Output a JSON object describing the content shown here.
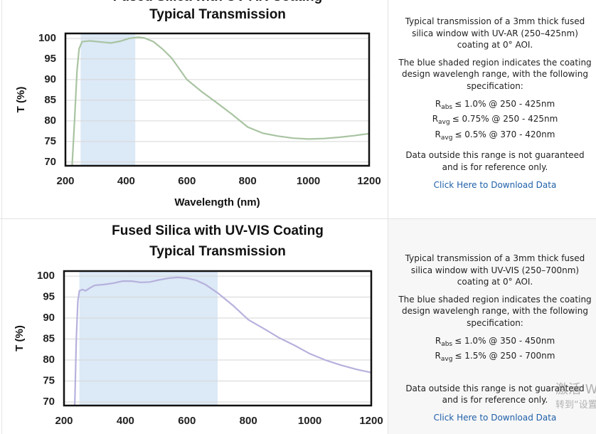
{
  "chart_data": [
    {
      "type": "line",
      "title": "Fused Silica with UV-AR Coating",
      "subtitle": "Typical Transmission",
      "ylabel": "T (%)",
      "xlabel": "Wavelength (nm)",
      "x": [
        222,
        230,
        238,
        245,
        255,
        280,
        320,
        350,
        380,
        410,
        440,
        460,
        490,
        520,
        550,
        600,
        650,
        700,
        750,
        800,
        850,
        900,
        950,
        1000,
        1050,
        1100,
        1150,
        1200
      ],
      "values": [
        69.2,
        80,
        92,
        97.5,
        99.2,
        99.4,
        99.1,
        98.9,
        99.3,
        100,
        100.3,
        100.1,
        99.2,
        97.4,
        95.2,
        90,
        87,
        84.3,
        81.5,
        78.5,
        77,
        76.3,
        75.8,
        75.6,
        75.7,
        76,
        76.4,
        76.9
      ],
      "color": "#a9c4a2",
      "shaded_range": [
        250,
        430
      ],
      "shade_color": "#dce9f6",
      "xlim": [
        200,
        1200
      ],
      "ylim": [
        69.1,
        101.2
      ],
      "xticks": [
        200,
        400,
        600,
        800,
        1000,
        1200
      ],
      "yticks": [
        70,
        75,
        80,
        85,
        90,
        95,
        100
      ],
      "grid": true
    },
    {
      "type": "line",
      "title": "Fused Silica with UV-VIS Coating",
      "subtitle": "Typical Transmission",
      "ylabel": "T (%)",
      "x": [
        235,
        240,
        245,
        250,
        260,
        270,
        285,
        300,
        330,
        360,
        390,
        420,
        450,
        480,
        510,
        540,
        570,
        600,
        630,
        660,
        700,
        750,
        800,
        850,
        900,
        950,
        1000,
        1050,
        1100,
        1150,
        1200
      ],
      "values": [
        69.2,
        85,
        94,
        96.5,
        96.8,
        96.5,
        97.2,
        97.8,
        98,
        98.3,
        98.8,
        98.8,
        98.5,
        98.6,
        99.1,
        99.5,
        99.7,
        99.5,
        99,
        98,
        96,
        93,
        89.6,
        87.5,
        85.3,
        83.5,
        81.5,
        80,
        78.8,
        77.8,
        77
      ],
      "color": "#b6b1dd",
      "shaded_range": [
        250,
        700
      ],
      "shade_color": "#dce9f6",
      "xlim": [
        200,
        1200
      ],
      "ylim": [
        69.15,
        101.2
      ],
      "xticks": [
        200,
        400,
        600,
        800,
        1000,
        1200
      ],
      "yticks": [
        70,
        75,
        80,
        85,
        90,
        95,
        100
      ],
      "grid": true
    }
  ],
  "info_panels": [
    {
      "description": "Typical transmission of a 3mm thick fused silica window with UV-AR (250–425nm) coating at 0° AOI.",
      "shading_note": "The blue shaded region indicates the coating design wavelengh range, with the following specification:",
      "specs": [
        {
          "symbol": "R",
          "sub": "abs",
          "text": "≤ 1.0% @ 250 - 425nm"
        },
        {
          "symbol": "R",
          "sub": "avg",
          "text": "≤ 0.75% @ 250 - 425nm"
        },
        {
          "symbol": "R",
          "sub": "avg",
          "text": "≤ 0.5% @ 370 - 420nm"
        }
      ],
      "disclaimer": "Data outside this range is not guaranteed and is for reference only.",
      "link": "Click Here to Download Data"
    },
    {
      "description": "Typical transmission of a 3mm thick fused silica window with UV-VIS (250–700nm) coating at 0° AOI.",
      "shading_note": "The blue shaded region indicates the coating design wavelengh range, with the following specification:",
      "specs": [
        {
          "symbol": "R",
          "sub": "abs",
          "text": "≤ 1.0% @ 350 - 450nm"
        },
        {
          "symbol": "R",
          "sub": "avg",
          "text": "≤ 1.5% @ 250 - 700nm"
        }
      ],
      "disclaimer": "Data outside this range is not guaranteed and is for reference only.",
      "link": "Click Here to Download Data"
    }
  ],
  "watermark": [
    "激活 W",
    "转到“设置”"
  ]
}
